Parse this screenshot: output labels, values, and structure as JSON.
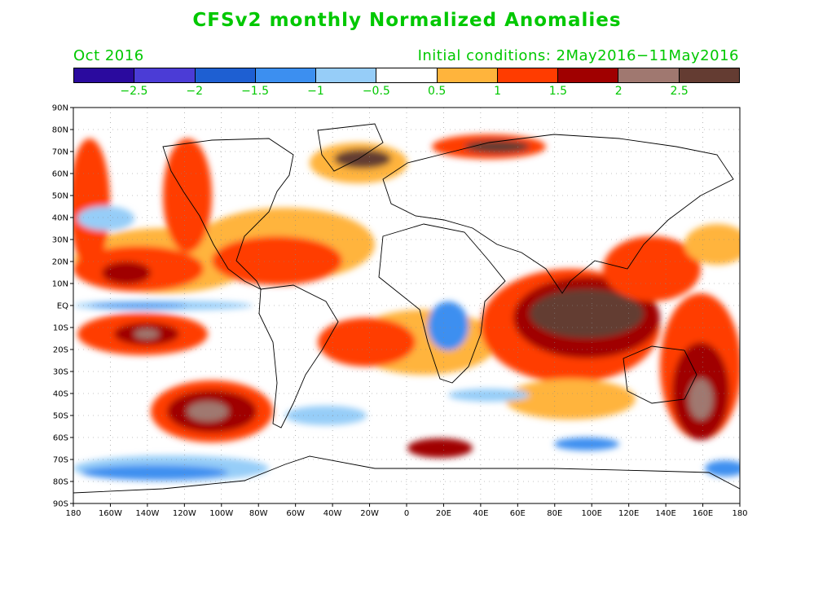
{
  "header": {
    "title": "CFSv2 monthly Normalized Anomalies",
    "month": "Oct 2016",
    "initial_conditions": "Initial conditions: 2May2016−11May2016"
  },
  "colorbar": {
    "colors": [
      "#2a0a9e",
      "#4b3cd6",
      "#1e5fd2",
      "#3c8ff0",
      "#96cdf8",
      "#ffffff",
      "#ffb43c",
      "#ff3c00",
      "#a00000",
      "#a07870",
      "#643c32"
    ],
    "labels": [
      "−2.5",
      "−2",
      "−1.5",
      "−1",
      "−0.5",
      "0.5",
      "1",
      "1.5",
      "2",
      "2.5"
    ]
  },
  "axes": {
    "lat_labels": [
      "90N",
      "80N",
      "70N",
      "60N",
      "50N",
      "40N",
      "30N",
      "20N",
      "10N",
      "EQ",
      "10S",
      "20S",
      "30S",
      "40S",
      "50S",
      "60S",
      "70S",
      "80S",
      "90S"
    ],
    "lon_labels": [
      "180",
      "160W",
      "140W",
      "120W",
      "100W",
      "80W",
      "60W",
      "40W",
      "20W",
      "0",
      "20E",
      "40E",
      "60E",
      "80E",
      "100E",
      "120E",
      "140E",
      "160E",
      "180"
    ]
  }
}
